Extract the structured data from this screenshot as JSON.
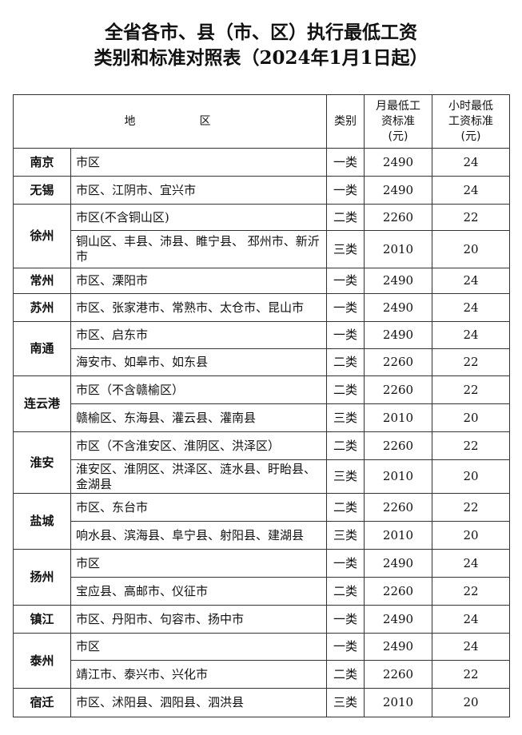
{
  "header": {
    "title_lines": [
      "全省各市、县（市、区）执行最低工资",
      "类别和标准对照表（2024年1月1日起）"
    ]
  },
  "table": {
    "columns": [
      "地区",
      "类别",
      "月最低工资标准(元)",
      "小时最低工资标准(元)"
    ],
    "groups": [
      {
        "city": "南京",
        "rows": [
          {
            "area": "市区",
            "category": "一类",
            "monthly": 2490,
            "hourly": 24
          }
        ]
      },
      {
        "city": "无锡",
        "rows": [
          {
            "area": "市区、江阴市、宜兴市",
            "category": "一类",
            "monthly": 2490,
            "hourly": 24
          }
        ]
      },
      {
        "city": "徐州",
        "rows": [
          {
            "area": "市区(不含铜山区)",
            "category": "二类",
            "monthly": 2260,
            "hourly": 22
          },
          {
            "area": "铜山区、丰县、沛县、睢宁县、 邳州市、新沂市",
            "category": "三类",
            "monthly": 2010,
            "hourly": 20
          }
        ]
      },
      {
        "city": "常州",
        "rows": [
          {
            "area": "市区、溧阳市",
            "category": "一类",
            "monthly": 2490,
            "hourly": 24
          }
        ]
      },
      {
        "city": "苏州",
        "rows": [
          {
            "area": "市区、张家港市、常熟市、太仓市、昆山市",
            "category": "一类",
            "monthly": 2490,
            "hourly": 24
          }
        ]
      },
      {
        "city": "南通",
        "rows": [
          {
            "area": "市区、启东市",
            "category": "一类",
            "monthly": 2490,
            "hourly": 24
          },
          {
            "area": "海安市、如皋市、如东县",
            "category": "二类",
            "monthly": 2260,
            "hourly": 22
          }
        ]
      },
      {
        "city": "连云港",
        "rows": [
          {
            "area": "市区（不含赣榆区）",
            "category": "二类",
            "monthly": 2260,
            "hourly": 22
          },
          {
            "area": "赣榆区、东海县、灌云县、灌南县",
            "category": "三类",
            "monthly": 2010,
            "hourly": 20
          }
        ]
      },
      {
        "city": "淮安",
        "rows": [
          {
            "area": "市区（不含淮安区、淮阴区、洪泽区）",
            "category": "二类",
            "monthly": 2260,
            "hourly": 22
          },
          {
            "area": "淮安区、淮阴区、洪泽区、涟水县、盱眙县、金湖县",
            "category": "三类",
            "monthly": 2010,
            "hourly": 20
          }
        ]
      },
      {
        "city": "盐城",
        "rows": [
          {
            "area": "市区、东台市",
            "category": "二类",
            "monthly": 2260,
            "hourly": 22
          },
          {
            "area": "响水县、滨海县、阜宁县、射阳县、建湖县",
            "category": "三类",
            "monthly": 2010,
            "hourly": 20
          }
        ]
      },
      {
        "city": "扬州",
        "rows": [
          {
            "area": "市区",
            "category": "一类",
            "monthly": 2490,
            "hourly": 24
          },
          {
            "area": "宝应县、高邮市、仪征市",
            "category": "二类",
            "monthly": 2260,
            "hourly": 22
          }
        ]
      },
      {
        "city": "镇江",
        "rows": [
          {
            "area": "市区、丹阳市、句容市、扬中市",
            "category": "一类",
            "monthly": 2490,
            "hourly": 24
          }
        ]
      },
      {
        "city": "泰州",
        "rows": [
          {
            "area": "市区",
            "category": "一类",
            "monthly": 2490,
            "hourly": 24
          },
          {
            "area": "靖江市、泰兴市、兴化市",
            "category": "二类",
            "monthly": 2260,
            "hourly": 22
          }
        ]
      },
      {
        "city": "宿迁",
        "rows": [
          {
            "area": "市区、沭阳县、泗阳县、泗洪县",
            "category": "三类",
            "monthly": 2010,
            "hourly": 20
          }
        ]
      }
    ]
  }
}
